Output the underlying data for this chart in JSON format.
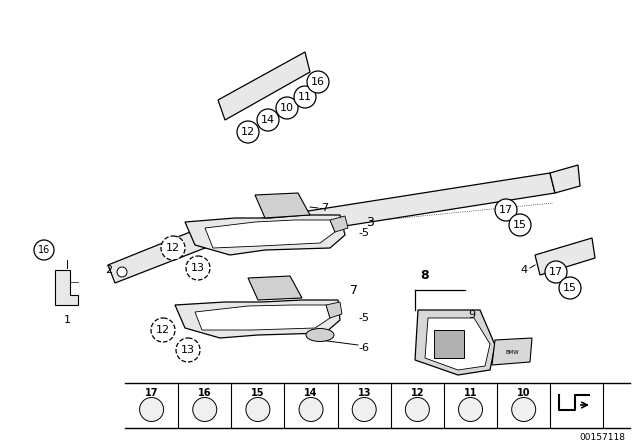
{
  "bg_color": "#ffffff",
  "fig_width": 6.4,
  "fig_height": 4.48,
  "dpi": 100,
  "part_number": "00157118",
  "line_color": "#000000"
}
